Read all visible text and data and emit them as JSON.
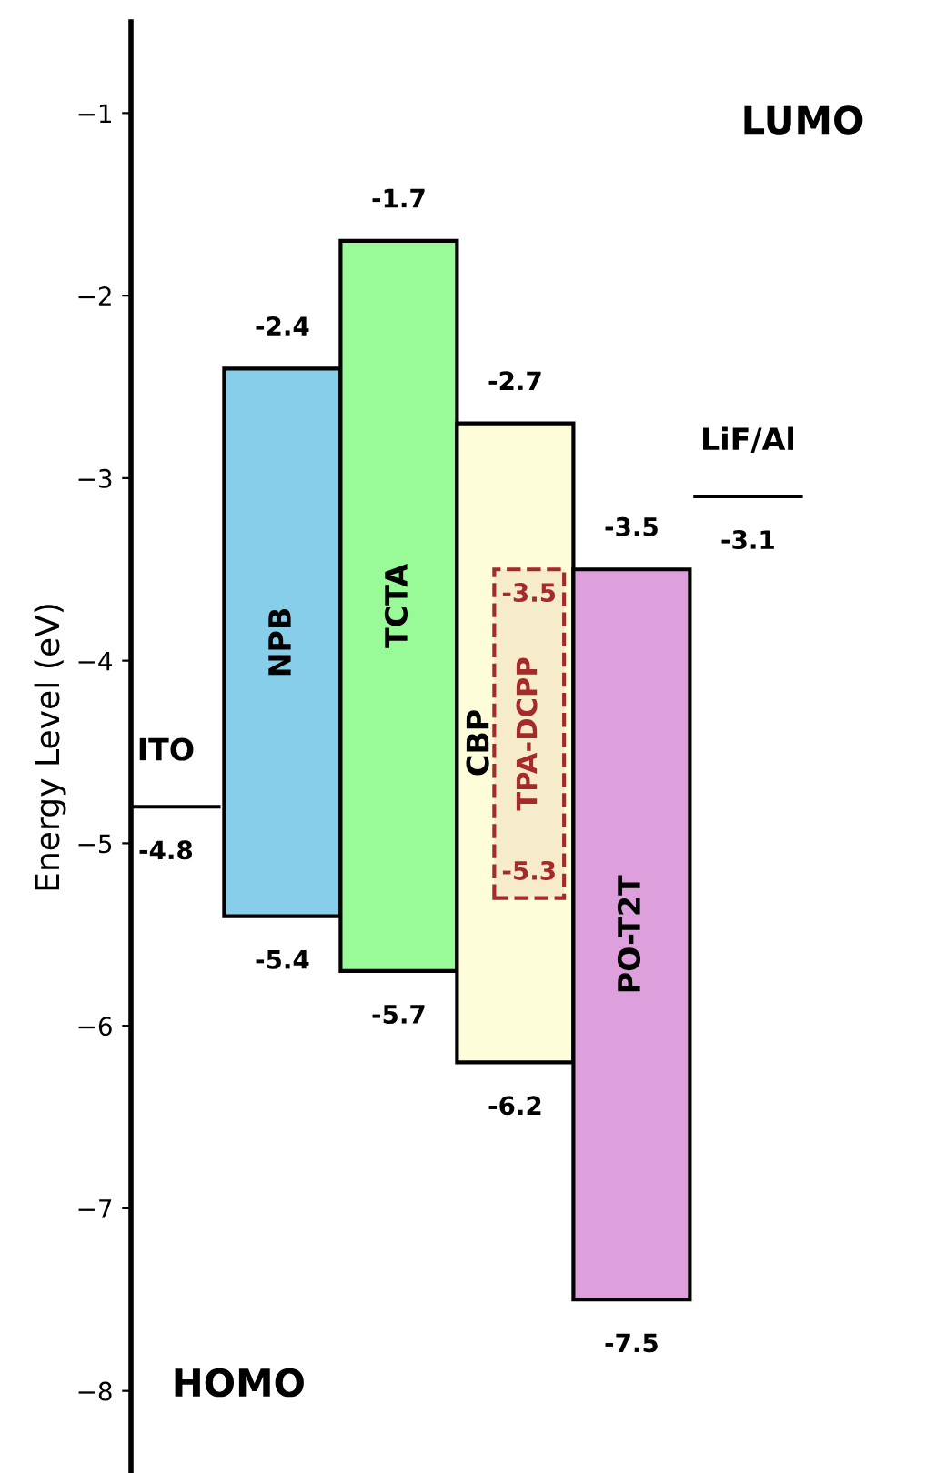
{
  "chart_data": {
    "type": "bar",
    "ylabel": "Energy Level (eV)",
    "categories": [
      "NPB",
      "TCTA",
      "CBP",
      "PO-T2T"
    ],
    "series": [
      {
        "values": [
          3.0,
          4.0,
          3.5,
          4.0
        ],
        "base": [
          -5.4,
          -5.7,
          -6.2,
          -7.5
        ],
        "colors": [
          "#87ceeb",
          "#98fb98",
          "#fdfdd9",
          "#dda0dd"
        ]
      }
    ],
    "ref_lines": [
      {
        "axis": "y",
        "value": -4.8,
        "label": "ITO",
        "color": "#000000"
      },
      {
        "axis": "y",
        "value": -3.1,
        "label": "LiF/Al",
        "color": "#000000"
      }
    ],
    "bands": [
      {
        "axis": "y",
        "from": -5.3,
        "to": -3.5,
        "label": "TPA-DCPP",
        "color": "#a52a2a"
      }
    ],
    "ylim": [
      -8.45,
      -0.5
    ],
    "yticks": [
      {
        "value": -8,
        "label": "−8"
      },
      {
        "value": -7,
        "label": "−7"
      },
      {
        "value": -6,
        "label": "−6"
      },
      {
        "value": -5,
        "label": "−5"
      },
      {
        "value": -4,
        "label": "−4"
      },
      {
        "value": -3,
        "label": "−3"
      },
      {
        "value": -2,
        "label": "−2"
      },
      {
        "value": -1,
        "label": "−1"
      }
    ],
    "tick_labels": "y",
    "grid": false,
    "annotations": [
      "LUMO",
      "HOMO",
      {
        "text": "-4.8",
        "y": -4.8
      },
      {
        "text": "-2.4",
        "x": "NPB",
        "y": -2.4
      },
      {
        "text": "-5.4",
        "x": "NPB",
        "y": -5.4
      },
      {
        "text": "-1.7",
        "x": "TCTA",
        "y": -1.7
      },
      {
        "text": "-5.7",
        "x": "TCTA",
        "y": -5.7
      },
      {
        "text": "-2.7",
        "x": "CBP",
        "y": -2.7
      },
      {
        "text": "-6.2",
        "x": "CBP",
        "y": -6.2
      },
      {
        "text": "-3.5",
        "y": -3.5
      },
      {
        "text": "-5.3",
        "y": -5.3
      },
      {
        "text": "-3.5",
        "x": "PO-T2T",
        "y": -3.5
      },
      {
        "text": "-7.5",
        "x": "PO-T2T",
        "y": -7.5
      },
      {
        "text": "-3.1",
        "y": -3.1
      }
    ]
  }
}
